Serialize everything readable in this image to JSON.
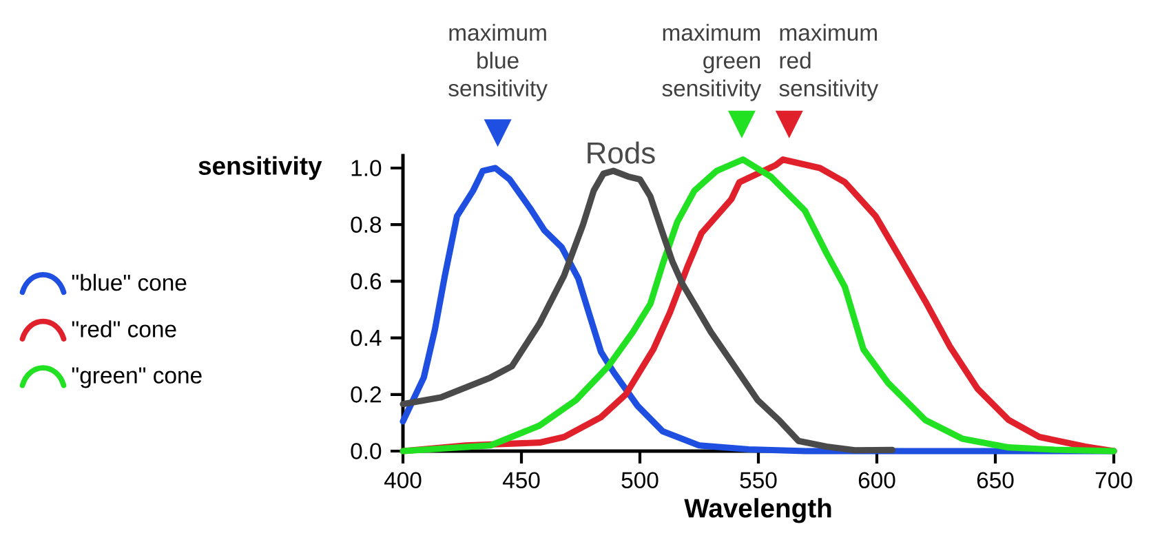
{
  "chart_data": {
    "type": "line",
    "xlabel": "Wavelength",
    "ylabel": "sensitivity",
    "xlim": [
      400,
      700
    ],
    "ylim": [
      0,
      1.05
    ],
    "xticks": [
      400,
      450,
      500,
      550,
      600,
      650,
      700
    ],
    "yticks": [
      {
        "value": 0,
        "label": "0.0"
      },
      0.2,
      0.4,
      0.6,
      0.8,
      {
        "value": 1,
        "label": "1.0"
      }
    ],
    "legend": "left",
    "series": [
      {
        "name": "\"blue\" cone",
        "color": "#1f4fe0",
        "x": [
          400,
          408.8,
          413.5,
          417.7,
          422.8,
          429.6,
          433.7,
          439,
          445,
          453.5,
          459.7,
          467,
          474,
          478.4,
          483.6,
          488.8,
          499,
          509.6,
          525,
          546,
          570,
          700
        ],
        "values": [
          0.105,
          0.26,
          0.43,
          0.62,
          0.83,
          0.92,
          0.99,
          1.0,
          0.96,
          0.86,
          0.78,
          0.72,
          0.61,
          0.49,
          0.35,
          0.28,
          0.16,
          0.07,
          0.02,
          0.006,
          0,
          0
        ]
      },
      {
        "name": "\"red\" cone",
        "color": "#e0202a",
        "x": [
          400,
          426.5,
          457.6,
          468,
          483.6,
          494,
          505.7,
          512.7,
          520,
          526,
          538.6,
          542,
          557.3,
          560.4,
          576,
          586.5,
          599.5,
          610,
          620.4,
          630.8,
          642.5,
          655.6,
          668.6,
          688,
          700
        ],
        "values": [
          0,
          0.02,
          0.03,
          0.05,
          0.12,
          0.2,
          0.36,
          0.49,
          0.65,
          0.77,
          0.89,
          0.95,
          1.01,
          1.03,
          1.0,
          0.95,
          0.83,
          0.68,
          0.53,
          0.37,
          0.22,
          0.11,
          0.05,
          0.016,
          0
        ]
      },
      {
        "name": "\"green\" cone",
        "color": "#22e022",
        "x": [
          400,
          437,
          457.6,
          473,
          486.7,
          497,
          504.4,
          509.6,
          515.8,
          523,
          532.4,
          543.5,
          555.2,
          569.6,
          578.7,
          586.5,
          594.3,
          604.8,
          620.4,
          636,
          655.6,
          675,
          700
        ],
        "values": [
          0,
          0.02,
          0.09,
          0.18,
          0.3,
          0.42,
          0.52,
          0.66,
          0.81,
          0.92,
          0.99,
          1.03,
          0.97,
          0.85,
          0.7,
          0.58,
          0.36,
          0.24,
          0.11,
          0.044,
          0.013,
          0.005,
          0
        ]
      },
      {
        "name": "Rods",
        "color": "#4a4a4a",
        "x": [
          400,
          416,
          437,
          446,
          457.6,
          468,
          476,
          480.5,
          484.6,
          488.8,
          495,
          500,
          504.4,
          509.6,
          513.7,
          518,
          530,
          540.7,
          549.7,
          559,
          566.9,
          578.8,
          590.7,
          606.5
        ],
        "values": [
          0.166,
          0.19,
          0.26,
          0.3,
          0.45,
          0.62,
          0.8,
          0.92,
          0.98,
          0.99,
          0.97,
          0.96,
          0.9,
          0.77,
          0.67,
          0.59,
          0.42,
          0.29,
          0.18,
          0.107,
          0.036,
          0.016,
          0.003,
          0.004
        ]
      }
    ],
    "annotations": [
      {
        "text": "maximum blue sensitivity",
        "x": 440,
        "y": 1.0
      },
      {
        "text": "maximum green sensitivity",
        "x": 543,
        "y": 1.03
      },
      {
        "text": "maximum red sensitivity",
        "x": 563,
        "y": 1.03
      }
    ]
  }
}
